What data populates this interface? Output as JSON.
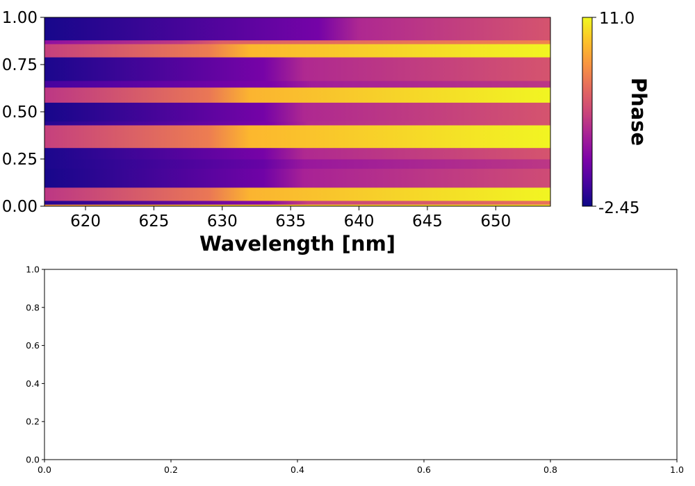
{
  "chart_data": [
    {
      "type": "heatmap",
      "title": "",
      "xlabel": "Wavelength [nm]",
      "ylabel": "",
      "xlim": [
        617,
        654
      ],
      "ylim": [
        0,
        1
      ],
      "x_ticks": [
        "620",
        "625",
        "630",
        "635",
        "640",
        "645",
        "650"
      ],
      "y_ticks": [
        "0.00",
        "0.25",
        "0.50",
        "0.75",
        "1.00"
      ],
      "colormap": "plasma",
      "colorbar": {
        "label": "Phase",
        "min_label": "-2.45",
        "max_label": "11.0",
        "min": -2.45,
        "max": 11.0
      },
      "bands": [
        {
          "y0": 0.0,
          "y1": 0.01,
          "start": 0.75,
          "end": 0.95,
          "edge": 629
        },
        {
          "y0": 0.01,
          "y1": 0.03,
          "start": 0.05,
          "end": 0.65,
          "edge": 636.3
        },
        {
          "y0": 0.03,
          "y1": 0.1,
          "start": 0.45,
          "end": 0.99,
          "edge": 632
        },
        {
          "y0": 0.1,
          "y1": 0.2,
          "start": 0.02,
          "end": 0.52,
          "edge": 636
        },
        {
          "y0": 0.2,
          "y1": 0.25,
          "start": 0.03,
          "end": 0.45,
          "edge": 636
        },
        {
          "y0": 0.25,
          "y1": 0.31,
          "start": 0.03,
          "end": 0.55,
          "edge": 636
        },
        {
          "y0": 0.31,
          "y1": 0.43,
          "start": 0.48,
          "end": 0.99,
          "edge": 632
        },
        {
          "y0": 0.43,
          "y1": 0.45,
          "start": 0.05,
          "end": 0.55,
          "edge": 636.3
        },
        {
          "y0": 0.45,
          "y1": 0.55,
          "start": 0.02,
          "end": 0.55,
          "edge": 636
        },
        {
          "y0": 0.55,
          "y1": 0.63,
          "start": 0.45,
          "end": 0.99,
          "edge": 632
        },
        {
          "y0": 0.63,
          "y1": 0.665,
          "start": 0.12,
          "end": 0.45,
          "edge": 636.5
        },
        {
          "y0": 0.665,
          "y1": 0.79,
          "start": 0.03,
          "end": 0.55,
          "edge": 636
        },
        {
          "y0": 0.79,
          "y1": 0.86,
          "start": 0.48,
          "end": 0.99,
          "edge": 632
        },
        {
          "y0": 0.86,
          "y1": 0.88,
          "start": 0.3,
          "end": 0.7,
          "edge": 630
        },
        {
          "y0": 0.88,
          "y1": 1.0,
          "start": 0.02,
          "end": 0.55,
          "edge": 640
        }
      ]
    },
    {
      "type": "line",
      "title": "",
      "xlabel": "",
      "ylabel": "",
      "xlim": [
        0,
        1
      ],
      "ylim": [
        0,
        1
      ],
      "x_ticks": [
        "0.0",
        "0.2",
        "0.4",
        "0.6",
        "0.8",
        "1.0"
      ],
      "y_ticks": [
        "0.0",
        "0.2",
        "0.4",
        "0.6",
        "0.8",
        "1.0"
      ],
      "series": []
    }
  ]
}
